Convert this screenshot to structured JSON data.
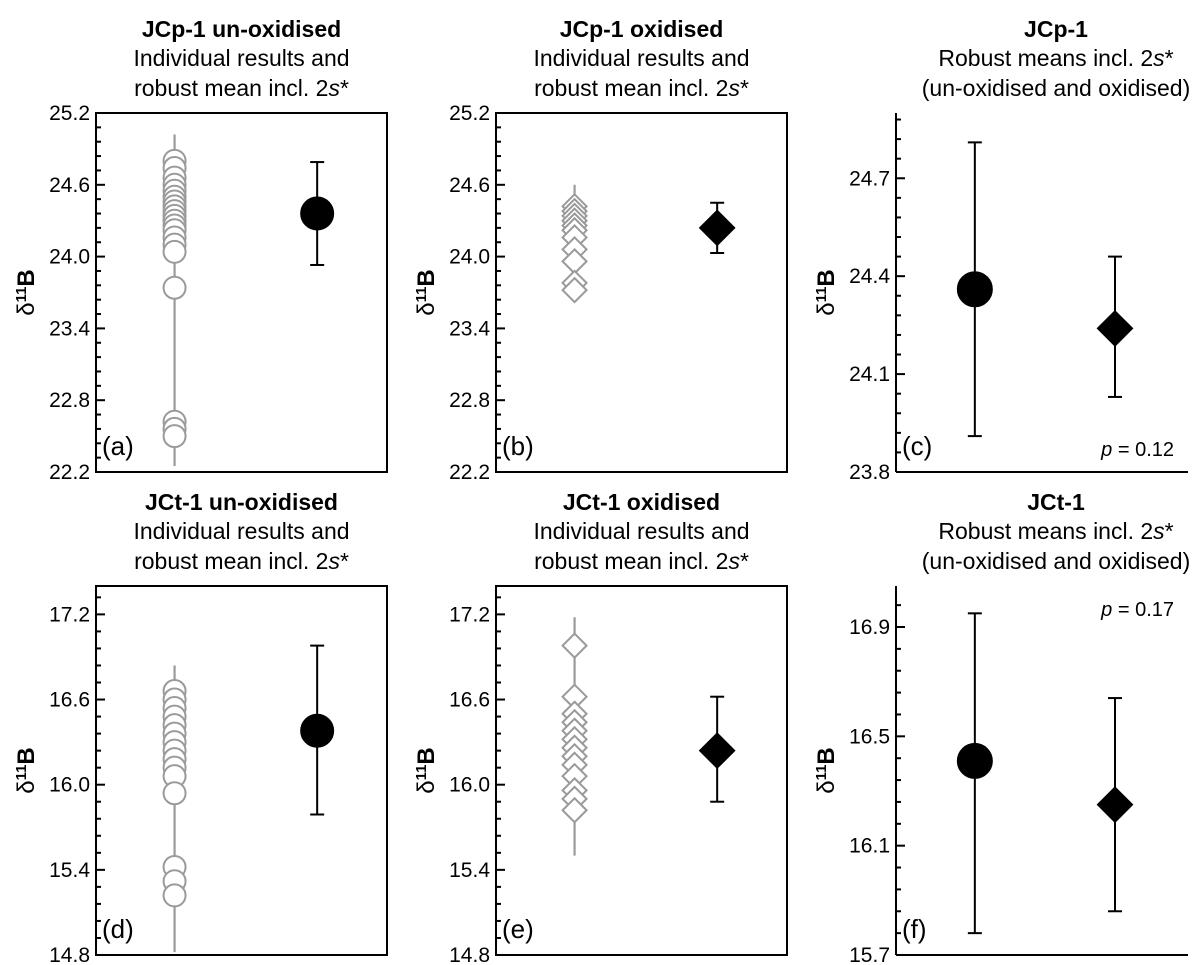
{
  "chart_data": [
    {
      "panel": "(a)",
      "type": "scatter",
      "title": "JCp-1 un-oxidised",
      "subtitle": [
        "Individual results and",
        "robust mean incl. 2s*"
      ],
      "ylabel": "δ11B",
      "ylim": [
        22.2,
        25.2
      ],
      "yticks": [
        "22.2",
        "22.8",
        "23.4",
        "24.0",
        "24.6",
        "25.2"
      ],
      "marker": "circle",
      "individual": {
        "values": [
          24.8,
          24.74,
          24.66,
          24.6,
          24.55,
          24.5,
          24.46,
          24.42,
          24.38,
          24.34,
          24.3,
          24.26,
          24.22,
          24.16,
          24.1,
          24.04,
          23.74,
          22.62,
          22.56,
          22.5
        ],
        "line": [
          22.25,
          25.02
        ]
      },
      "mean": {
        "y": 24.36,
        "upper": 24.79,
        "lower": 23.93
      }
    },
    {
      "panel": "(b)",
      "type": "scatter",
      "title": "JCp-1 oxidised",
      "subtitle": [
        "Individual results and",
        "robust mean incl. 2s*"
      ],
      "ylabel": "δ11B",
      "ylim": [
        22.2,
        25.2
      ],
      "yticks": [
        "22.2",
        "22.8",
        "23.4",
        "24.0",
        "24.6",
        "25.2"
      ],
      "marker": "diamond",
      "individual": {
        "values": [
          24.42,
          24.38,
          24.34,
          24.3,
          24.26,
          24.22,
          24.16,
          24.06,
          23.96,
          23.78,
          23.72
        ],
        "line": [
          23.66,
          24.6
        ]
      },
      "mean": {
        "y": 24.24,
        "upper": 24.45,
        "lower": 24.03
      }
    },
    {
      "panel": "(c)",
      "type": "scatter",
      "title": "JCp-1",
      "subtitle": [
        "Robust means incl. 2s*",
        "(un-oxidised and oxidised)"
      ],
      "ylabel": "δ11B",
      "ylim": [
        23.8,
        24.9
      ],
      "yticks": [
        "23.8",
        "24.1",
        "24.4",
        "24.7"
      ],
      "annotation": "p = 0.12",
      "annotation_pos": "bottom-right",
      "means": [
        {
          "name": "un-oxidised",
          "marker": "circle",
          "y": 24.36,
          "upper": 24.81,
          "lower": 23.91
        },
        {
          "name": "oxidised",
          "marker": "diamond",
          "y": 24.24,
          "upper": 24.46,
          "lower": 24.03
        }
      ]
    },
    {
      "panel": "(d)",
      "type": "scatter",
      "title": "JCt-1 un-oxidised",
      "subtitle": [
        "Individual results and",
        "robust mean incl. 2s*"
      ],
      "ylabel": "δ11B",
      "ylim": [
        14.8,
        17.4
      ],
      "yticks": [
        "14.8",
        "15.4",
        "16.0",
        "16.6",
        "17.2"
      ],
      "marker": "circle",
      "individual": {
        "values": [
          16.66,
          16.6,
          16.54,
          16.48,
          16.42,
          16.36,
          16.3,
          16.24,
          16.18,
          16.12,
          16.06,
          15.94,
          15.42,
          15.32,
          15.22
        ],
        "line": [
          14.82,
          16.84
        ]
      },
      "mean": {
        "y": 16.38,
        "upper": 16.98,
        "lower": 15.79
      }
    },
    {
      "panel": "(e)",
      "type": "scatter",
      "title": "JCt-1 oxidised",
      "subtitle": [
        "Individual results and",
        "robust mean incl. 2s*"
      ],
      "ylabel": "δ11B",
      "ylim": [
        14.8,
        17.4
      ],
      "yticks": [
        "14.8",
        "15.4",
        "16.0",
        "16.6",
        "17.2"
      ],
      "marker": "diamond",
      "individual": {
        "values": [
          16.98,
          16.62,
          16.5,
          16.44,
          16.38,
          16.32,
          16.26,
          16.2,
          16.14,
          16.06,
          15.96,
          15.9,
          15.82
        ],
        "line": [
          15.5,
          17.18
        ]
      },
      "mean": {
        "y": 16.24,
        "upper": 16.62,
        "lower": 15.88
      }
    },
    {
      "panel": "(f)",
      "type": "scatter",
      "title": "JCt-1",
      "subtitle": [
        "Robust means incl. 2s*",
        "(un-oxidised and oxidised)"
      ],
      "ylabel": "δ11B",
      "ylim": [
        15.7,
        17.05
      ],
      "yticks": [
        "15.7",
        "16.1",
        "16.5",
        "16.9"
      ],
      "annotation": "p = 0.17",
      "annotation_pos": "top-right",
      "means": [
        {
          "name": "un-oxidised",
          "marker": "circle",
          "y": 16.41,
          "upper": 16.95,
          "lower": 15.78
        },
        {
          "name": "oxidised",
          "marker": "diamond",
          "y": 16.25,
          "upper": 16.64,
          "lower": 15.86
        }
      ]
    }
  ]
}
